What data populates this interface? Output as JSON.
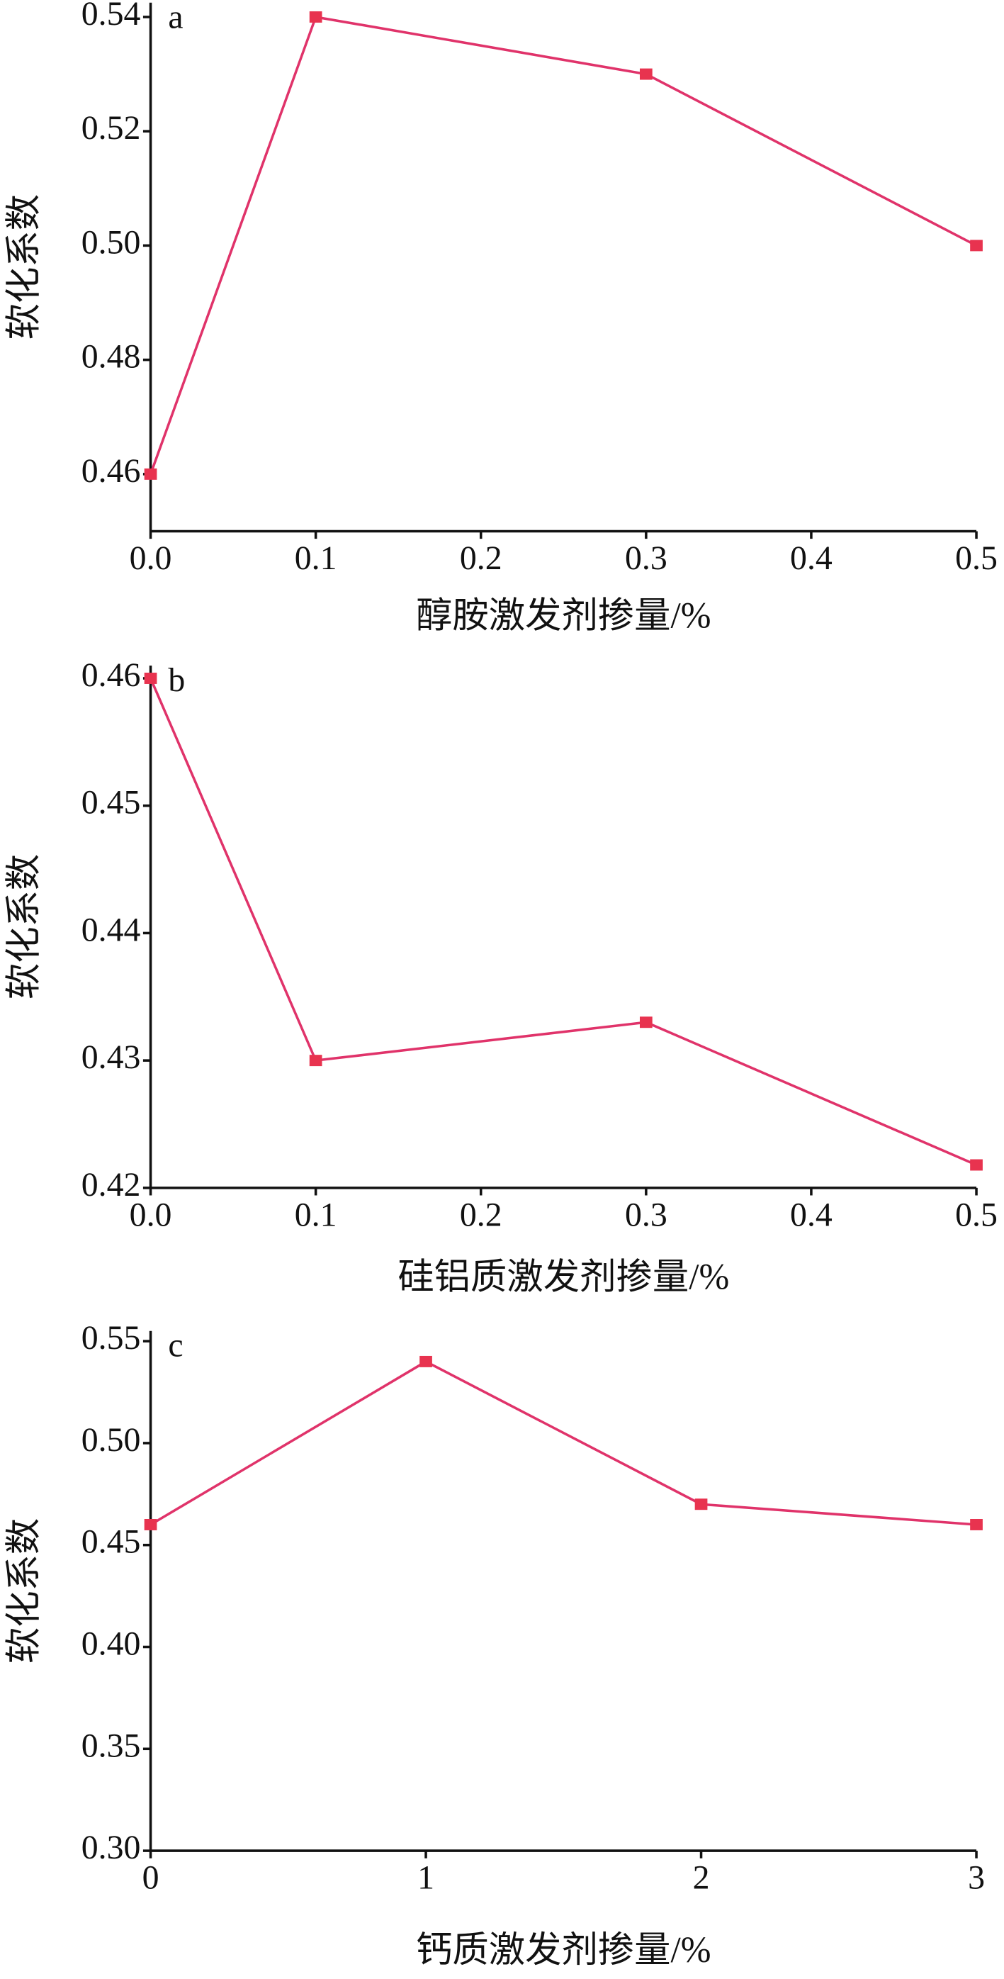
{
  "chart_data": [
    {
      "type": "line",
      "panel_label": "a",
      "x_label": "醇胺激发剂掺量/%",
      "y_label": "软化系数",
      "x": [
        0,
        0.1,
        0.3,
        0.5
      ],
      "values": [
        0.46,
        0.54,
        0.53,
        0.5
      ],
      "color": "#e0336a",
      "marker_color": "#e8334f",
      "xlim": [
        0,
        0.5
      ],
      "xticks": [
        {
          "value": 0,
          "label": "0.0"
        },
        0.1,
        0.2,
        0.3,
        0.4,
        0.5
      ],
      "ylim": [
        0.45,
        0.5425
      ],
      "yticks": [
        0.46,
        0.48,
        {
          "value": 0.5,
          "label": "0.50"
        },
        0.52,
        0.54
      ]
    },
    {
      "type": "line",
      "panel_label": "b",
      "x_label": "硅铝质激发剂掺量/%",
      "y_label": "软化系数",
      "x": [
        0,
        0.1,
        0.3,
        0.5
      ],
      "values": [
        0.46,
        0.43,
        0.433,
        0.4218
      ],
      "color": "#e0336a",
      "marker_color": "#e8334f",
      "xlim": [
        0,
        0.5
      ],
      "xticks": [
        {
          "value": 0,
          "label": "0.0"
        },
        0.1,
        0.2,
        0.3,
        0.4,
        0.5
      ],
      "ylim": [
        0.42,
        0.461
      ],
      "yticks": [
        0.42,
        0.43,
        0.44,
        0.45,
        0.46
      ]
    },
    {
      "type": "line",
      "panel_label": "c",
      "x_label": "钙质激发剂掺量/%",
      "y_label": "软化系数",
      "x": [
        0,
        1,
        2,
        3
      ],
      "values": [
        0.46,
        0.54,
        0.47,
        0.46
      ],
      "color": "#e0336a",
      "marker_color": "#e8334f",
      "xlim": [
        0,
        3
      ],
      "xticks": [
        0,
        1,
        2,
        3
      ],
      "ylim": [
        0.3,
        0.555
      ],
      "yticks": [
        {
          "value": 0.3,
          "label": "0.30"
        },
        0.35,
        {
          "value": 0.4,
          "label": "0.40"
        },
        0.45,
        {
          "value": 0.5,
          "label": "0.50"
        },
        0.55
      ]
    }
  ]
}
